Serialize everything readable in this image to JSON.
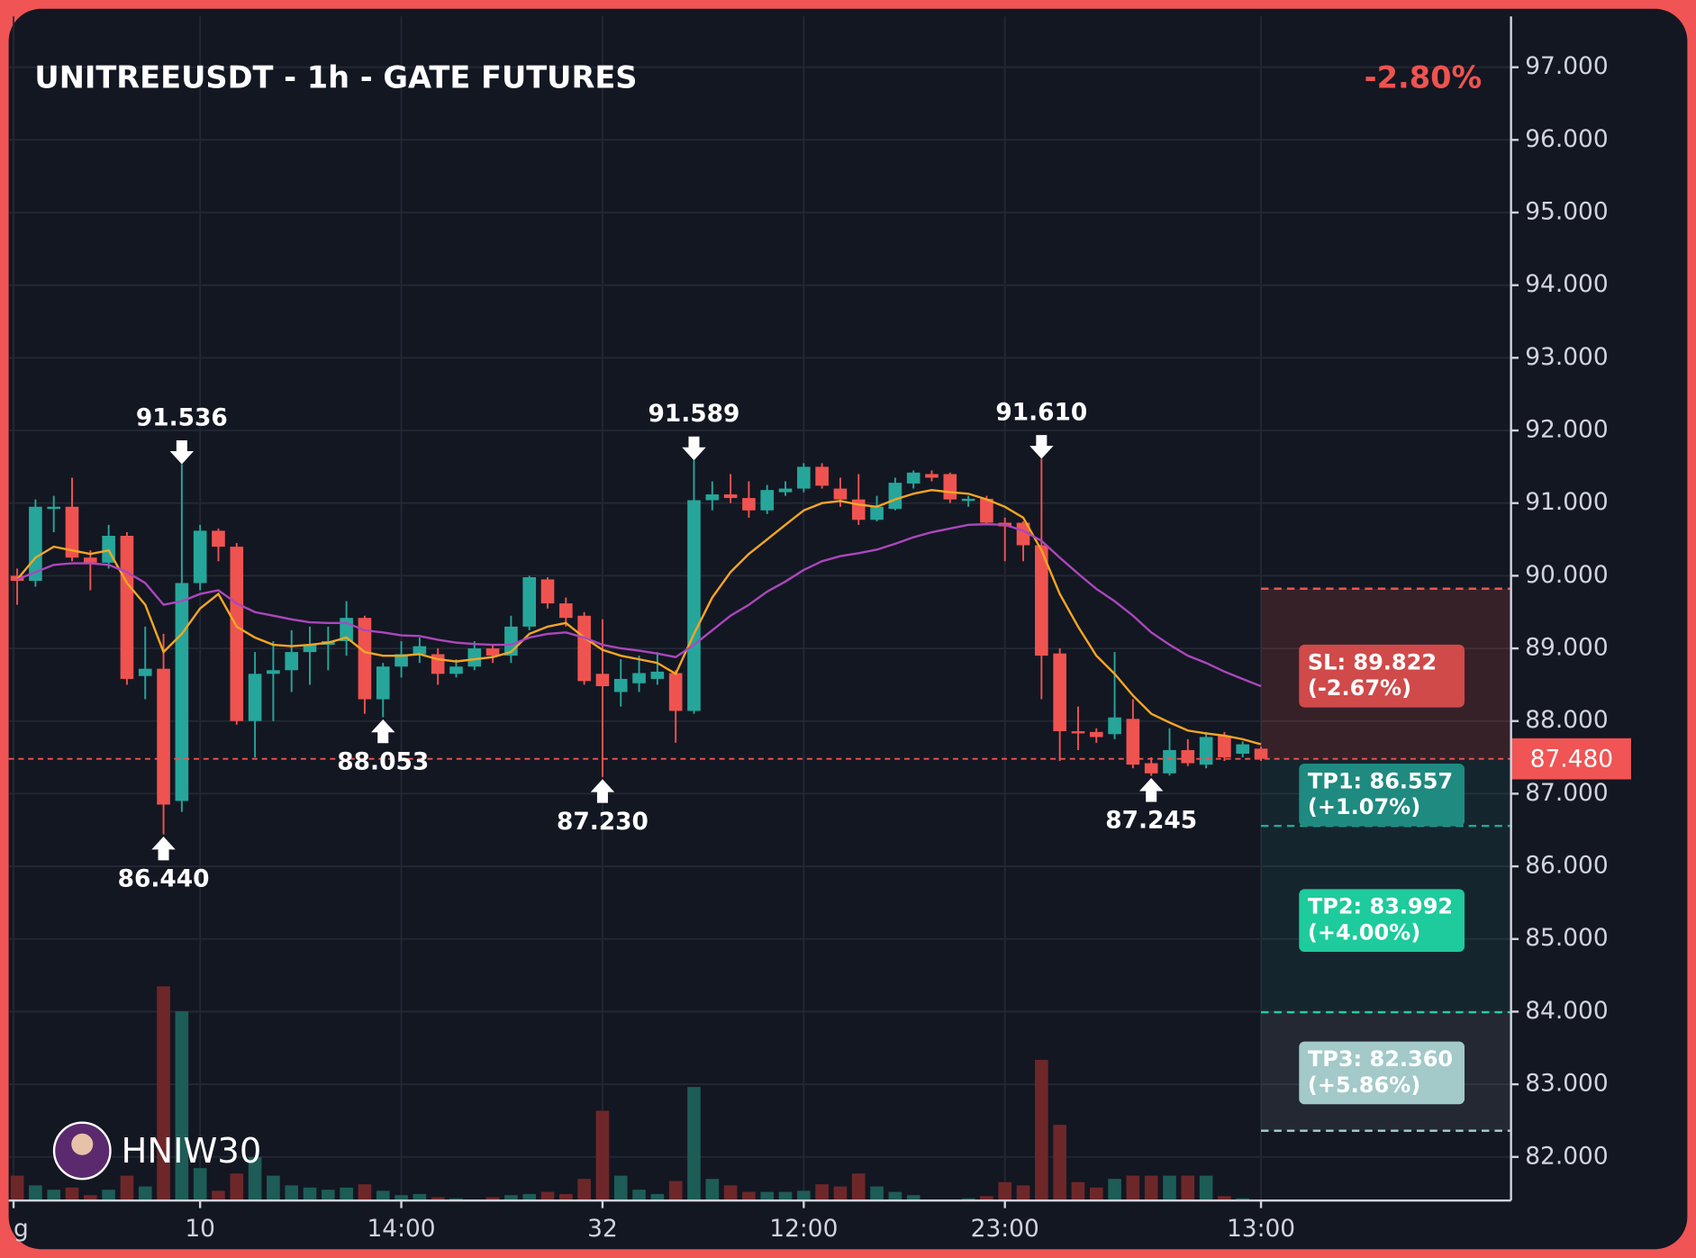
{
  "chart_data": {
    "type": "candlestick",
    "title": "UNITREEUSDT - 1h - GATE FUTURES",
    "change": "-2.80%",
    "watermark": "HNIW30",
    "up_color": "#26a69a",
    "down_color": "#ef5350",
    "open": [
      90.0,
      89.93,
      90.92,
      90.95,
      90.25,
      90.18,
      90.55,
      88.62,
      88.72,
      86.9,
      89.9,
      90.62,
      90.4,
      88.0,
      88.65,
      88.7,
      88.95,
      89.05,
      89.1,
      89.42,
      88.3,
      88.75,
      88.92,
      88.92,
      88.65,
      88.75,
      89.0,
      88.9,
      89.3,
      89.95,
      89.62,
      89.45,
      88.65,
      88.4,
      88.52,
      88.58,
      88.66,
      88.14,
      91.04,
      91.12,
      91.07,
      90.9,
      91.15,
      91.2,
      91.5,
      91.2,
      91.05,
      90.77,
      90.92,
      91.27,
      91.4,
      91.4,
      91.03,
      91.06,
      90.73,
      90.73,
      90.42,
      88.93,
      87.86,
      87.85,
      87.82,
      88.03,
      87.42,
      87.28,
      87.6,
      87.4,
      87.8,
      87.55,
      87.62
    ],
    "high": [
      90.1,
      91.05,
      91.1,
      91.35,
      90.35,
      90.7,
      90.6,
      89.3,
      89.2,
      91.536,
      90.7,
      90.65,
      90.45,
      88.95,
      89.1,
      89.25,
      89.3,
      89.3,
      89.65,
      89.45,
      88.8,
      89.1,
      89.15,
      89.0,
      88.85,
      89.1,
      89.05,
      89.45,
      90.0,
      89.98,
      89.7,
      89.5,
      89.4,
      88.85,
      88.9,
      88.95,
      88.7,
      91.589,
      91.3,
      91.4,
      91.3,
      91.25,
      91.3,
      91.55,
      91.55,
      91.35,
      91.4,
      91.1,
      91.35,
      91.45,
      91.45,
      91.42,
      91.1,
      91.1,
      90.8,
      90.75,
      91.61,
      89.0,
      88.2,
      87.9,
      88.95,
      88.3,
      87.5,
      87.9,
      87.75,
      87.85,
      87.85,
      87.72,
      87.65
    ],
    "low": [
      89.6,
      89.85,
      90.6,
      90.2,
      89.8,
      90.1,
      88.5,
      88.3,
      86.44,
      86.75,
      89.8,
      90.2,
      87.95,
      87.5,
      88.0,
      88.4,
      88.5,
      88.7,
      88.9,
      88.1,
      88.053,
      88.6,
      88.8,
      88.5,
      88.6,
      88.7,
      88.8,
      88.8,
      89.25,
      89.55,
      89.3,
      88.5,
      87.23,
      88.2,
      88.4,
      88.5,
      87.7,
      88.1,
      90.9,
      91.0,
      90.8,
      90.85,
      91.1,
      91.15,
      91.2,
      90.95,
      90.7,
      90.75,
      90.9,
      91.2,
      91.3,
      91.0,
      90.95,
      90.7,
      90.2,
      90.2,
      88.3,
      87.45,
      87.6,
      87.7,
      87.75,
      87.35,
      87.245,
      87.25,
      87.38,
      87.35,
      87.45,
      87.5,
      87.45
    ],
    "close": [
      89.93,
      90.95,
      90.95,
      90.25,
      90.18,
      90.55,
      88.58,
      88.72,
      86.85,
      89.9,
      90.62,
      90.4,
      88.0,
      88.65,
      88.7,
      88.95,
      89.05,
      89.1,
      89.42,
      88.3,
      88.75,
      88.92,
      89.03,
      88.65,
      88.75,
      89.0,
      88.9,
      89.3,
      89.98,
      89.62,
      89.42,
      88.55,
      88.48,
      88.58,
      88.66,
      88.68,
      88.14,
      91.04,
      91.12,
      91.07,
      90.9,
      91.18,
      91.2,
      91.5,
      91.24,
      91.05,
      90.77,
      90.95,
      91.28,
      91.42,
      91.35,
      91.05,
      91.06,
      90.73,
      90.68,
      90.42,
      88.9,
      87.86,
      87.83,
      87.78,
      88.05,
      87.4,
      87.28,
      87.6,
      87.42,
      87.78,
      87.5,
      87.68,
      87.48
    ],
    "volume": [
      23,
      14,
      10,
      12,
      5,
      10,
      23,
      13,
      198,
      175,
      30,
      9,
      25,
      40,
      23,
      14,
      12,
      10,
      12,
      15,
      9,
      5,
      6,
      3,
      2,
      0,
      3,
      5,
      6,
      8,
      6,
      20,
      83,
      23,
      10,
      6,
      18,
      105,
      20,
      14,
      8,
      8,
      8,
      9,
      15,
      13,
      25,
      13,
      8,
      5,
      0,
      0,
      2,
      4,
      17,
      14,
      130,
      70,
      17,
      12,
      20,
      23,
      23,
      23,
      23,
      23,
      4,
      2,
      1
    ],
    "volume_up_color": "#1d5c57",
    "volume_down_color": "#6e2729",
    "series": [
      {
        "color": "#f5a623",
        "values": [
          89.95,
          90.25,
          90.4,
          90.35,
          90.3,
          90.35,
          89.9,
          89.6,
          88.95,
          89.2,
          89.55,
          89.75,
          89.3,
          89.15,
          89.05,
          89.03,
          89.05,
          89.08,
          89.15,
          88.95,
          88.9,
          88.9,
          88.92,
          88.85,
          88.82,
          88.85,
          88.88,
          88.95,
          89.2,
          89.3,
          89.35,
          89.15,
          88.98,
          88.9,
          88.85,
          88.8,
          88.65,
          89.2,
          89.7,
          90.05,
          90.3,
          90.5,
          90.7,
          90.9,
          91.0,
          91.03,
          90.98,
          90.95,
          91.05,
          91.13,
          91.18,
          91.15,
          91.13,
          91.05,
          90.95,
          90.8,
          90.35,
          89.75,
          89.3,
          88.9,
          88.65,
          88.35,
          88.1,
          87.98,
          87.87,
          87.83,
          87.8,
          87.75,
          87.68
        ]
      },
      {
        "color": "#ab47bc",
        "values": [
          89.95,
          90.05,
          90.15,
          90.17,
          90.17,
          90.15,
          90.05,
          89.9,
          89.6,
          89.65,
          89.75,
          89.8,
          89.62,
          89.5,
          89.45,
          89.4,
          89.36,
          89.35,
          89.35,
          89.25,
          89.22,
          89.18,
          89.17,
          89.12,
          89.08,
          89.06,
          89.05,
          89.05,
          89.15,
          89.2,
          89.22,
          89.15,
          89.05,
          89.0,
          88.97,
          88.93,
          88.88,
          89.05,
          89.25,
          89.45,
          89.6,
          89.78,
          89.92,
          90.08,
          90.2,
          90.27,
          90.31,
          90.36,
          90.44,
          90.53,
          90.6,
          90.65,
          90.7,
          90.71,
          90.7,
          90.62,
          90.48,
          90.25,
          90.03,
          89.82,
          89.65,
          89.45,
          89.22,
          89.05,
          88.9,
          88.8,
          88.68,
          88.58,
          88.48
        ]
      }
    ],
    "annotations": [
      {
        "candle": 9,
        "side": "high",
        "label": "91.536"
      },
      {
        "candle": 8,
        "side": "low",
        "label": "86.440"
      },
      {
        "candle": 20,
        "side": "low",
        "label": "88.053"
      },
      {
        "candle": 32,
        "side": "low",
        "label": "87.230"
      },
      {
        "candle": 37,
        "side": "high",
        "label": "91.589"
      },
      {
        "candle": 56,
        "side": "high",
        "label": "91.610"
      },
      {
        "candle": 62,
        "side": "low",
        "label": "87.245"
      }
    ],
    "last_price": {
      "value": 87.48,
      "label": "87.480"
    },
    "levels_from": 68,
    "levels": [
      {
        "value": 89.822,
        "label": "SL: 89.822",
        "pct": "(-2.67%)",
        "color": "#d04a4a",
        "line_color": "#ef5350"
      },
      {
        "value": 86.557,
        "label": "TP1: 86.557",
        "pct": "(+1.07%)",
        "color": "#1f8a80",
        "line_color": "#26a69a"
      },
      {
        "value": 83.992,
        "label": "TP2: 83.992",
        "pct": "(+4.00%)",
        "color": "#1ecb9c",
        "line_color": "#1fd1a0"
      },
      {
        "value": 82.36,
        "label": "TP3: 82.360",
        "pct": "(+5.86%)",
        "color": "#a3c9c9",
        "line_color": "#a8cfcf"
      }
    ],
    "xlim": [
      -0.467,
      81.67
    ],
    "xticks": [
      {
        "value": -0.2,
        "label": "g"
      },
      10,
      {
        "value": 21,
        "label": "14:00"
      },
      32,
      {
        "value": 43,
        "label": "12:00"
      },
      {
        "value": 54,
        "label": "23:00"
      },
      {
        "value": 68,
        "label": "13:00"
      }
    ],
    "ylim": [
      81.4,
      97.7
    ],
    "yticks": [
      {
        "value": 82,
        "label": "82.000"
      },
      {
        "value": 83,
        "label": "83.000"
      },
      {
        "value": 84,
        "label": "84.000"
      },
      {
        "value": 85,
        "label": "85.000"
      },
      {
        "value": 86,
        "label": "86.000"
      },
      {
        "value": 87,
        "label": "87.000"
      },
      {
        "value": 88,
        "label": "88.000"
      },
      {
        "value": 89,
        "label": "89.000"
      },
      {
        "value": 90,
        "label": "90.000"
      },
      {
        "value": 91,
        "label": "91.000"
      },
      {
        "value": 92,
        "label": "92.000"
      },
      {
        "value": 93,
        "label": "93.000"
      },
      {
        "value": 94,
        "label": "94.000"
      },
      {
        "value": 95,
        "label": "95.000"
      },
      {
        "value": 96,
        "label": "96.000"
      },
      {
        "value": 97,
        "label": "97.000"
      }
    ],
    "grid": true
  }
}
